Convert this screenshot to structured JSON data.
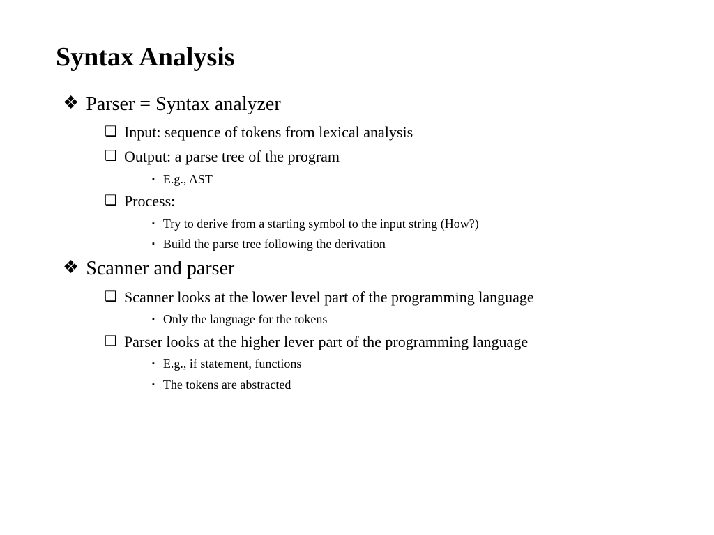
{
  "title": "Syntax Analysis",
  "bullets": {
    "diamond": "❖",
    "square": "❑",
    "blacksquare": "▪"
  },
  "items": [
    {
      "level": 1,
      "text": "Parser = Syntax analyzer"
    },
    {
      "level": 2,
      "text": "Input: sequence of tokens from lexical analysis"
    },
    {
      "level": 2,
      "text": "Output: a parse tree of the program"
    },
    {
      "level": 3,
      "text": "E.g., AST"
    },
    {
      "level": 2,
      "text": "Process:"
    },
    {
      "level": 3,
      "text": "Try to derive from a starting symbol to the input string (How?)"
    },
    {
      "level": 3,
      "text": "Build the parse tree following the derivation"
    },
    {
      "level": 1,
      "text": "Scanner and parser"
    },
    {
      "level": 2,
      "text": "Scanner looks at the lower level part of the programming language"
    },
    {
      "level": 3,
      "text": "Only the language for the tokens"
    },
    {
      "level": 2,
      "text": "Parser looks at the higher lever part of the programming language"
    },
    {
      "level": 3,
      "text": "E.g., if statement, functions"
    },
    {
      "level": 3,
      "text": "The tokens are abstracted"
    }
  ],
  "colors": {
    "background": "#ffffff",
    "text": "#000000"
  },
  "typography": {
    "family": "Times New Roman",
    "title_size_pt": 38,
    "l1_size_pt": 28,
    "l2_size_pt": 22,
    "l3_size_pt": 18
  }
}
